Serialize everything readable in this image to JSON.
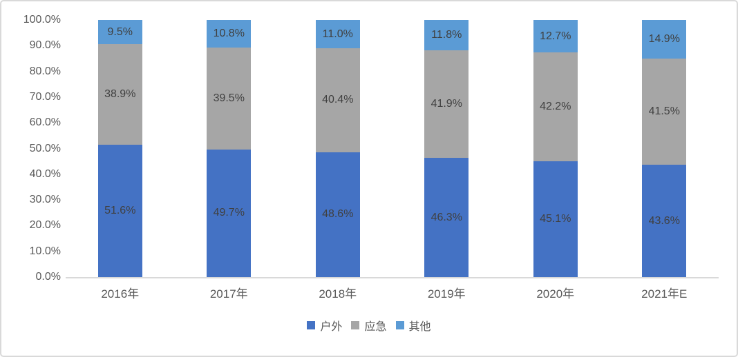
{
  "chart_data": {
    "type": "bar",
    "stacked": true,
    "percent_stacked": true,
    "title": "",
    "xlabel": "",
    "ylabel": "",
    "grid": false,
    "categories": [
      "2016年",
      "2017年",
      "2018年",
      "2019年",
      "2020年",
      "2021年E"
    ],
    "series": [
      {
        "name": "户外",
        "color": "#4472C4",
        "values": [
          51.6,
          49.7,
          48.6,
          46.3,
          45.1,
          43.6
        ],
        "labels": [
          "51.6%",
          "49.7%",
          "48.6%",
          "46.3%",
          "45.1%",
          "43.6%"
        ]
      },
      {
        "name": "应急",
        "color": "#A6A6A6",
        "values": [
          38.9,
          39.5,
          40.4,
          41.9,
          42.2,
          41.5
        ],
        "labels": [
          "38.9%",
          "39.5%",
          "40.4%",
          "41.9%",
          "42.2%",
          "41.5%"
        ]
      },
      {
        "name": "其他",
        "color": "#5B9BD5",
        "values": [
          9.5,
          10.8,
          11.0,
          11.8,
          12.7,
          14.9
        ],
        "labels": [
          "9.5%",
          "10.8%",
          "11.0%",
          "11.8%",
          "12.7%",
          "14.9%"
        ]
      }
    ],
    "y_axis": {
      "min": 0,
      "max": 100,
      "step": 10,
      "tick_labels": [
        "0.0%",
        "10.0%",
        "20.0%",
        "30.0%",
        "40.0%",
        "50.0%",
        "60.0%",
        "70.0%",
        "80.0%",
        "90.0%",
        "100.0%"
      ]
    },
    "legend": {
      "position": "bottom",
      "entries": [
        "户外",
        "应急",
        "其他"
      ]
    },
    "colors": {
      "axis_line": "#D9D9D9",
      "tick_text": "#595959",
      "data_label_text": "#404040",
      "border": "#D9D9D9"
    }
  }
}
